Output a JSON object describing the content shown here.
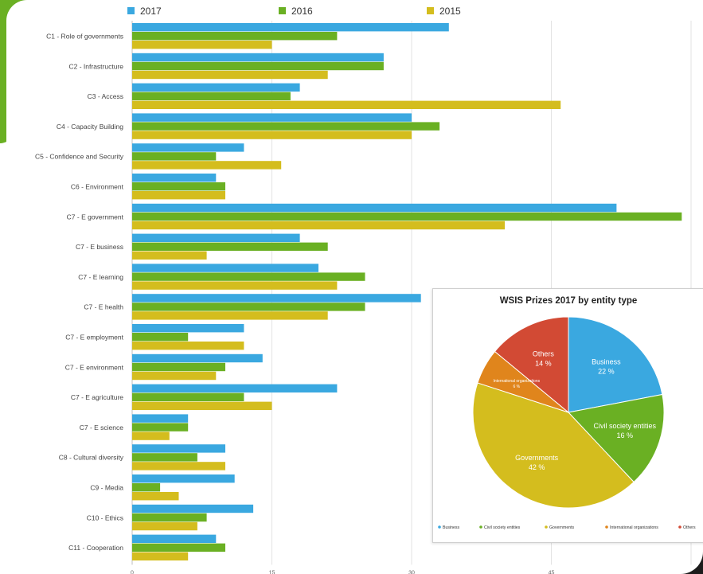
{
  "chart_data": [
    {
      "type": "bar",
      "orientation": "horizontal",
      "title": "",
      "xlabel": "",
      "ylabel": "",
      "categories": [
        "C1 - Role of governments",
        "C2 - Infrastructure",
        "C3 - Access",
        "C4 - Capacity Building",
        "C5 - Confidence and Security",
        "C6 - Environment",
        "C7 - E government",
        "C7 - E business",
        "C7 - E learning",
        "C7 - E health",
        "C7 - E employment",
        "C7 - E environment",
        "C7 - E agriculture",
        "C7 - E science",
        "C8 - Cultural diversity",
        "C9 - Media",
        "C10 - Ethics",
        "C11 - Cooperation"
      ],
      "series": [
        {
          "name": "2017",
          "color": "#3aa8e0",
          "values": [
            34,
            27,
            18,
            30,
            12,
            9,
            52,
            18,
            20,
            31,
            12,
            14,
            22,
            6,
            10,
            11,
            13,
            9
          ]
        },
        {
          "name": "2016",
          "color": "#6ab023",
          "values": [
            22,
            27,
            17,
            33,
            9,
            10,
            59,
            21,
            25,
            25,
            6,
            10,
            12,
            6,
            7,
            3,
            8,
            10
          ]
        },
        {
          "name": "2015",
          "color": "#d4bd1e",
          "values": [
            15,
            21,
            46,
            30,
            16,
            10,
            40,
            8,
            22,
            21,
            12,
            9,
            15,
            4,
            10,
            5,
            7,
            6
          ]
        }
      ],
      "x_ticks": [
        "0",
        "15",
        "30",
        "45"
      ],
      "xlim": [
        0,
        60
      ],
      "grid": true,
      "legend_position": "top-left"
    },
    {
      "type": "pie",
      "title": "WSIS Prizes 2017 by entity type",
      "slices": [
        {
          "name": "Business",
          "value": 22,
          "label": "22 %",
          "color": "#3aa8e0"
        },
        {
          "name": "Civil society entities",
          "value": 16,
          "label": "16 %",
          "color": "#6ab023"
        },
        {
          "name": "Governments",
          "value": 42,
          "label": "42 %",
          "color": "#d4bd1e"
        },
        {
          "name": "International organizations",
          "value": 6,
          "label": "6 %",
          "color": "#e0851c"
        },
        {
          "name": "Others",
          "value": 14,
          "label": "14 %",
          "color": "#d24a34"
        }
      ],
      "legend_position": "bottom"
    }
  ]
}
